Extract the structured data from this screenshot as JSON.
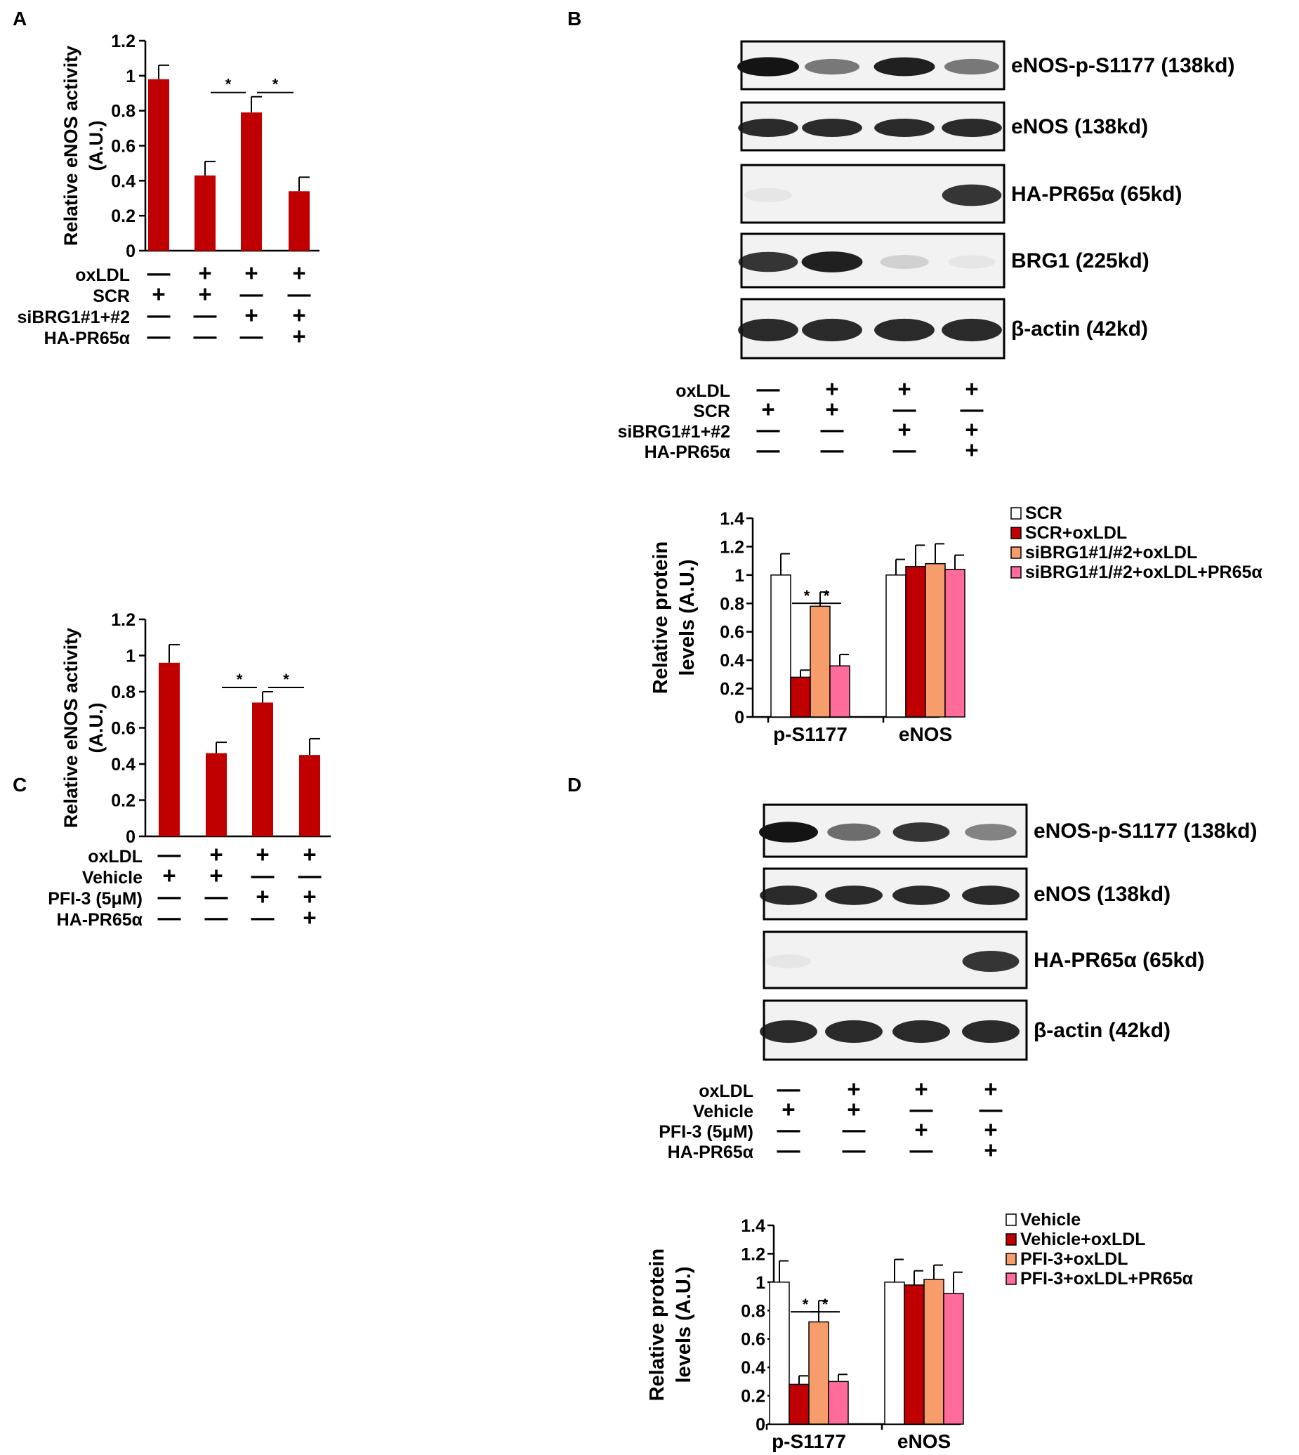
{
  "panels": {
    "A": "A",
    "B": "B",
    "C": "C",
    "D": "D"
  },
  "signs": {
    "plus": "+",
    "minus": "—"
  },
  "colors": {
    "red": "#c00000",
    "white": "#ffffff",
    "orange": "#f79c6b",
    "pink": "#ff6b9a",
    "blot_bg": "#f2f2f2",
    "band": "#141414"
  },
  "chart_data": [
    {
      "panel": "A",
      "type": "bar",
      "ylabel": "Relative eNOS activity (A.U.)",
      "ylabel_lines": [
        "Relative eNOS activity",
        "(A.U.)"
      ],
      "ylim": [
        0,
        1.2
      ],
      "yticks": [
        "0",
        "0.2",
        "0.4",
        "0.6",
        "0.8",
        "1",
        "1.2"
      ],
      "values": [
        0.98,
        0.43,
        0.79,
        0.34
      ],
      "errors": [
        0.08,
        0.08,
        0.09,
        0.08
      ],
      "significance": [
        {
          "from": 1,
          "to": 2,
          "label": "*"
        },
        {
          "from": 2,
          "to": 3,
          "label": "*"
        }
      ],
      "conditions": {
        "labels": [
          "oxLDL",
          "SCR",
          "siBRG1#1+#2",
          "HA-PR65α"
        ],
        "rows": [
          [
            "-",
            "+",
            "+",
            "+"
          ],
          [
            "+",
            "+",
            "-",
            "-"
          ],
          [
            "-",
            "-",
            "+",
            "+"
          ],
          [
            "-",
            "-",
            "-",
            "+"
          ]
        ]
      }
    },
    {
      "panel": "C",
      "type": "bar",
      "ylabel": "Relative eNOS activity (A.U.)",
      "ylabel_lines": [
        "Relative eNOS activity",
        "(A.U.)"
      ],
      "ylim": [
        0,
        1.2
      ],
      "yticks": [
        "0",
        "0.2",
        "0.4",
        "0.6",
        "0.8",
        "1",
        "1.2"
      ],
      "values": [
        0.96,
        0.46,
        0.74,
        0.45
      ],
      "errors": [
        0.1,
        0.06,
        0.06,
        0.09
      ],
      "significance": [
        {
          "from": 1,
          "to": 2,
          "label": "*"
        },
        {
          "from": 2,
          "to": 3,
          "label": "*"
        }
      ],
      "conditions": {
        "labels": [
          "oxLDL",
          "Vehicle",
          "PFI-3 (5μM)",
          "HA-PR65α"
        ],
        "rows": [
          [
            "-",
            "+",
            "+",
            "+"
          ],
          [
            "+",
            "+",
            "-",
            "-"
          ],
          [
            "-",
            "-",
            "+",
            "+"
          ],
          [
            "-",
            "-",
            "-",
            "+"
          ]
        ]
      }
    },
    {
      "panel": "B",
      "type": "bar",
      "ylabel": "Relative protein levels (A.U.)",
      "ylabel_lines": [
        "Relative protein",
        "levels (A.U.)"
      ],
      "ylim": [
        0,
        1.4
      ],
      "yticks": [
        "0",
        "0.2",
        "0.4",
        "0.6",
        "0.8",
        "1",
        "1.2",
        "1.4"
      ],
      "categories": [
        "p-S1177",
        "eNOS"
      ],
      "legend_position": "right",
      "series": [
        {
          "name": "SCR",
          "values": [
            1.0,
            1.0
          ],
          "errors": [
            0.15,
            0.11
          ]
        },
        {
          "name": "SCR+oxLDL",
          "values": [
            0.28,
            1.06
          ],
          "errors": [
            0.05,
            0.15
          ]
        },
        {
          "name": "siBRG1#1/#2+oxLDL",
          "values": [
            0.78,
            1.08
          ],
          "errors": [
            0.1,
            0.14
          ]
        },
        {
          "name": "siBRG1#1/#2+oxLDL+PR65α",
          "values": [
            0.36,
            1.04
          ],
          "errors": [
            0.08,
            0.1
          ]
        }
      ],
      "significance": [
        {
          "category": 0,
          "from": 1,
          "to": 2,
          "label": "*"
        },
        {
          "category": 0,
          "from": 2,
          "to": 3,
          "label": "*"
        }
      ]
    },
    {
      "panel": "D",
      "type": "bar",
      "ylabel": "Relative protein levels (A.U.)",
      "ylabel_lines": [
        "Relative protein",
        "levels (A.U.)"
      ],
      "ylim": [
        0,
        1.4
      ],
      "yticks": [
        "0",
        "0.2",
        "0.4",
        "0.6",
        "0.8",
        "1",
        "1.2",
        "1.4"
      ],
      "categories": [
        "p-S1177",
        "eNOS"
      ],
      "legend_position": "right",
      "series": [
        {
          "name": "Vehicle",
          "values": [
            1.0,
            1.0
          ],
          "errors": [
            0.15,
            0.16
          ]
        },
        {
          "name": "Vehicle+oxLDL",
          "values": [
            0.28,
            0.98
          ],
          "errors": [
            0.06,
            0.1
          ]
        },
        {
          "name": "PFI-3+oxLDL",
          "values": [
            0.72,
            1.02
          ],
          "errors": [
            0.15,
            0.1
          ]
        },
        {
          "name": "PFI-3+oxLDL+PR65α",
          "values": [
            0.3,
            0.92
          ],
          "errors": [
            0.05,
            0.15
          ]
        }
      ],
      "significance": [
        {
          "category": 0,
          "from": 1,
          "to": 2,
          "label": "*"
        },
        {
          "category": 0,
          "from": 2,
          "to": 3,
          "label": "*"
        }
      ]
    }
  ],
  "blots": [
    {
      "panel": "B",
      "bands": [
        {
          "label": "eNOS-p-S1177 (138kd)",
          "intensities": [
            1.0,
            0.55,
            0.95,
            0.55
          ]
        },
        {
          "label": "eNOS (138kd)",
          "intensities": [
            0.9,
            0.9,
            0.9,
            0.9
          ]
        },
        {
          "label": "HA-PR65α (65kd)",
          "intensities": [
            0.05,
            0.0,
            0.0,
            0.85
          ]
        },
        {
          "label": "BRG1 (225kd)",
          "intensities": [
            0.85,
            0.95,
            0.15,
            0.05
          ]
        },
        {
          "label": "β-actin (42kd)",
          "intensities": [
            0.9,
            0.9,
            0.9,
            0.9
          ]
        }
      ],
      "conditions": {
        "labels": [
          "oxLDL",
          "SCR",
          "siBRG1#1+#2",
          "HA-PR65α"
        ],
        "rows": [
          [
            "-",
            "+",
            "+",
            "+"
          ],
          [
            "+",
            "+",
            "-",
            "-"
          ],
          [
            "-",
            "-",
            "+",
            "+"
          ],
          [
            "-",
            "-",
            "-",
            "+"
          ]
        ]
      }
    },
    {
      "panel": "D",
      "bands": [
        {
          "label": "eNOS-p-S1177 (138kd)",
          "intensities": [
            1.0,
            0.6,
            0.85,
            0.5
          ]
        },
        {
          "label": "eNOS (138kd)",
          "intensities": [
            0.9,
            0.9,
            0.9,
            0.9
          ]
        },
        {
          "label": "HA-PR65α (65kd)",
          "intensities": [
            0.05,
            0.0,
            0.0,
            0.85
          ]
        },
        {
          "label": "β-actin (42kd)",
          "intensities": [
            0.9,
            0.9,
            0.9,
            0.9
          ]
        }
      ],
      "conditions": {
        "labels": [
          "oxLDL",
          "Vehicle",
          "PFI-3 (5μM)",
          "HA-PR65α"
        ],
        "rows": [
          [
            "-",
            "+",
            "+",
            "+"
          ],
          [
            "+",
            "+",
            "-",
            "-"
          ],
          [
            "-",
            "-",
            "+",
            "+"
          ],
          [
            "-",
            "-",
            "-",
            "+"
          ]
        ]
      }
    }
  ]
}
